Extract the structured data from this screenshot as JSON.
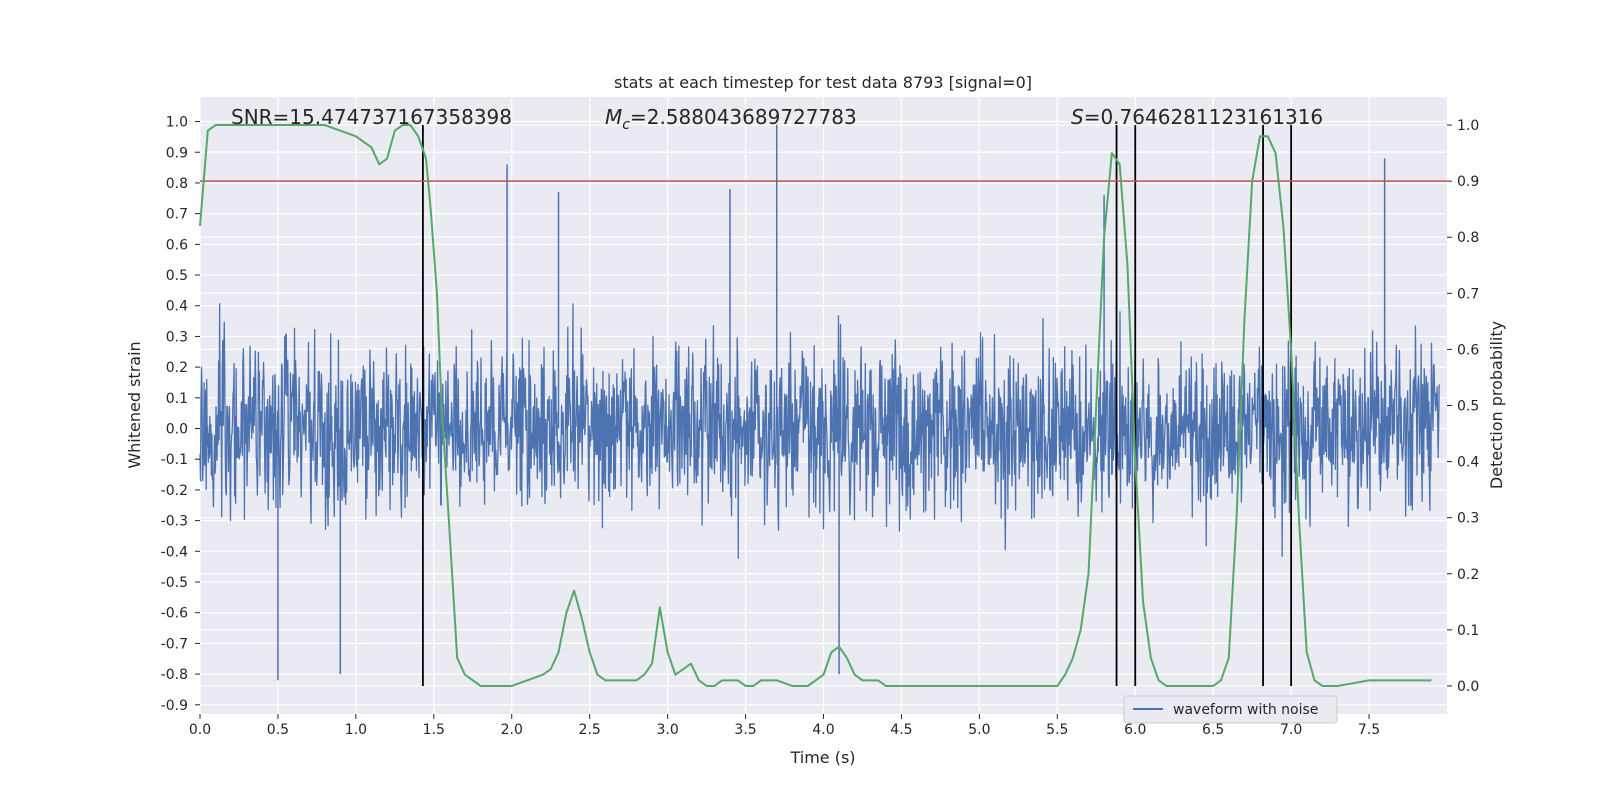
{
  "chart_data": {
    "type": "line",
    "title": "stats at each timestep for test data 8793 [signal=0]",
    "xlabel": "Time (s)",
    "ylabel_left": "Whitened strain",
    "ylabel_right": "Detection probability",
    "xlim": [
      0.0,
      8.0
    ],
    "ylim_left": [
      -0.93,
      1.08
    ],
    "ylim_right": [
      -0.05,
      1.05
    ],
    "x_ticks": [
      "0.0",
      "0.5",
      "1.0",
      "1.5",
      "2.0",
      "2.5",
      "3.0",
      "3.5",
      "4.0",
      "4.5",
      "5.0",
      "5.5",
      "6.0",
      "6.5",
      "7.0",
      "7.5"
    ],
    "y_left_ticks": [
      "1.0",
      "0.9",
      "0.8",
      "0.7",
      "0.6",
      "0.5",
      "0.4",
      "0.3",
      "0.2",
      "0.1",
      "0.0",
      "-0.1",
      "-0.2",
      "-0.3",
      "-0.4",
      "-0.5",
      "-0.6",
      "-0.7",
      "-0.8",
      "-0.9"
    ],
    "y_right_ticks": [
      "1.0",
      "0.9",
      "0.8",
      "0.7",
      "0.6",
      "0.5",
      "0.4",
      "0.3",
      "0.2",
      "0.1",
      "0.0"
    ],
    "grid": true,
    "legend_position": "bottom-right",
    "annotations": {
      "snr": "SNR=15.474737167358398",
      "mc_symbol": "M",
      "mc_sub": "c",
      "mc_value": "=2.588043689727783",
      "s_symbol": "S",
      "s_value": "=0.7646281123161316"
    },
    "series": [
      {
        "name": "waveform with noise",
        "axis": "left",
        "color": "#4c72b0",
        "style": "dense noise trace",
        "envelope_typical": [
          -0.3,
          0.3
        ],
        "notable_peaks": [
          {
            "x": 0.5,
            "y": -0.82
          },
          {
            "x": 0.9,
            "y": -0.8
          },
          {
            "x": 1.97,
            "y": 0.86
          },
          {
            "x": 2.3,
            "y": 0.77
          },
          {
            "x": 3.4,
            "y": 0.78
          },
          {
            "x": 3.7,
            "y": 0.99
          },
          {
            "x": 4.1,
            "y": -0.8
          },
          {
            "x": 5.8,
            "y": 0.76
          },
          {
            "x": 7.6,
            "y": 0.88
          }
        ]
      },
      {
        "axis": "right",
        "color": "#55a868",
        "x": [
          0.0,
          0.05,
          0.1,
          0.2,
          0.5,
          0.8,
          1.0,
          1.1,
          1.15,
          1.2,
          1.25,
          1.3,
          1.35,
          1.4,
          1.45,
          1.48,
          1.52,
          1.55,
          1.6,
          1.65,
          1.7,
          1.8,
          1.9,
          2.0,
          2.1,
          2.2,
          2.25,
          2.3,
          2.35,
          2.4,
          2.45,
          2.5,
          2.55,
          2.6,
          2.7,
          2.8,
          2.85,
          2.9,
          2.95,
          3.0,
          3.05,
          3.1,
          3.15,
          3.2,
          3.25,
          3.3,
          3.35,
          3.4,
          3.45,
          3.5,
          3.55,
          3.6,
          3.7,
          3.8,
          3.9,
          4.0,
          4.05,
          4.1,
          4.15,
          4.2,
          4.25,
          4.3,
          4.35,
          4.4,
          4.5,
          4.7,
          4.9,
          5.1,
          5.3,
          5.5,
          5.55,
          5.6,
          5.65,
          5.7,
          5.75,
          5.8,
          5.85,
          5.9,
          5.95,
          6.0,
          6.05,
          6.1,
          6.15,
          6.2,
          6.3,
          6.4,
          6.5,
          6.55,
          6.6,
          6.65,
          6.7,
          6.75,
          6.8,
          6.85,
          6.9,
          6.95,
          7.0,
          7.05,
          7.1,
          7.15,
          7.2,
          7.3,
          7.5,
          7.7,
          7.9
        ],
        "y": [
          0.82,
          0.99,
          1.0,
          1.0,
          1.0,
          1.0,
          0.98,
          0.96,
          0.93,
          0.94,
          0.99,
          1.0,
          1.0,
          0.98,
          0.94,
          0.85,
          0.7,
          0.5,
          0.28,
          0.05,
          0.02,
          0.0,
          0.0,
          0.0,
          0.01,
          0.02,
          0.03,
          0.06,
          0.13,
          0.17,
          0.12,
          0.06,
          0.02,
          0.01,
          0.01,
          0.01,
          0.02,
          0.04,
          0.14,
          0.06,
          0.02,
          0.03,
          0.04,
          0.01,
          0.0,
          0.0,
          0.01,
          0.01,
          0.01,
          0.0,
          0.0,
          0.01,
          0.01,
          0.0,
          0.0,
          0.02,
          0.06,
          0.07,
          0.05,
          0.02,
          0.01,
          0.01,
          0.01,
          0.0,
          0.0,
          0.0,
          0.0,
          0.0,
          0.0,
          0.0,
          0.02,
          0.05,
          0.1,
          0.2,
          0.5,
          0.8,
          0.95,
          0.93,
          0.75,
          0.4,
          0.15,
          0.05,
          0.01,
          0.0,
          0.0,
          0.0,
          0.0,
          0.01,
          0.05,
          0.3,
          0.65,
          0.9,
          0.98,
          0.98,
          0.95,
          0.82,
          0.6,
          0.3,
          0.06,
          0.01,
          0.0,
          0.0,
          0.01,
          0.01,
          0.01
        ]
      }
    ],
    "threshold": {
      "axis": "right",
      "value": 0.9,
      "color": "#c44e52"
    },
    "vertical_markers": [
      1.43,
      5.88,
      6.0,
      6.82,
      7.0
    ]
  }
}
